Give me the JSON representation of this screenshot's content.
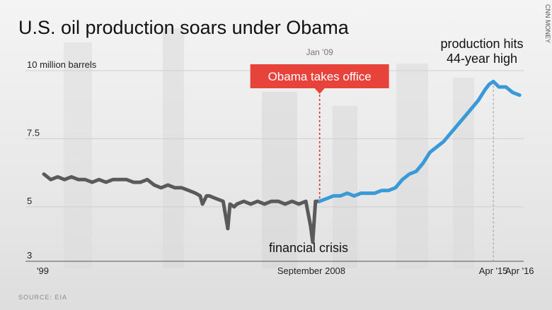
{
  "title": "U.S. oil production soars under Obama",
  "credit": "CNN MONEY",
  "source": "SOURCE: EIA",
  "colors": {
    "pre_obama": "#5a5a5a",
    "obama": "#3a9ad9",
    "callout": "#e8433b",
    "dashed_marker": "#d23a2e",
    "grid": "#cfcfcf"
  },
  "annotations": {
    "callout": "Obama takes office",
    "callout_date": "Jan '09",
    "crisis": "financial crisis",
    "peak_line1": "production hits",
    "peak_line2": "44-year high"
  },
  "chart_data": {
    "type": "line",
    "title": "U.S. oil production soars under Obama",
    "ylabel": "10 million barrels",
    "ylim": [
      3,
      10
    ],
    "yticks": [
      {
        "value": 10,
        "label": "10 million barrels"
      },
      {
        "value": 7.5,
        "label": "7.5"
      },
      {
        "value": 5,
        "label": "5"
      },
      {
        "value": 3,
        "label": "3"
      }
    ],
    "xlim": [
      1999.0,
      2016.4
    ],
    "xticks": [
      {
        "value": 1999.0,
        "label": "'99"
      },
      {
        "value": 2008.7,
        "label": "September 2008"
      },
      {
        "value": 2015.3,
        "label": "Apr '15"
      },
      {
        "value": 2016.25,
        "label": "Apr '16"
      }
    ],
    "grid": true,
    "series": [
      {
        "x": [
          1999.0,
          1999.25,
          1999.5,
          1999.75,
          2000.0,
          2000.25,
          2000.5,
          2000.75,
          2001.0,
          2001.25,
          2001.5,
          2001.75,
          2002.0,
          2002.25,
          2002.5,
          2002.75,
          2003.0,
          2003.25,
          2003.5,
          2003.75,
          2004.0,
          2004.25,
          2004.5,
          2004.67,
          2004.75,
          2004.9,
          2005.0,
          2005.25,
          2005.5,
          2005.67,
          2005.75,
          2005.9,
          2006.0,
          2006.25,
          2006.5,
          2006.75,
          2007.0,
          2007.25,
          2007.5,
          2007.75,
          2008.0,
          2008.25,
          2008.5,
          2008.67,
          2008.75,
          2008.85,
          2009.0
        ],
        "y": [
          6.2,
          6.0,
          6.1,
          6.0,
          6.1,
          6.0,
          6.0,
          5.9,
          6.0,
          5.9,
          6.0,
          6.0,
          6.0,
          5.9,
          5.9,
          6.0,
          5.8,
          5.7,
          5.8,
          5.7,
          5.7,
          5.6,
          5.5,
          5.4,
          5.1,
          5.4,
          5.4,
          5.3,
          5.2,
          4.2,
          5.1,
          5.0,
          5.1,
          5.2,
          5.1,
          5.2,
          5.1,
          5.2,
          5.2,
          5.1,
          5.2,
          5.1,
          5.2,
          4.3,
          3.7,
          5.2,
          5.2
        ]
      },
      {
        "x": [
          2009.0,
          2009.25,
          2009.5,
          2009.75,
          2010.0,
          2010.25,
          2010.5,
          2010.75,
          2011.0,
          2011.25,
          2011.5,
          2011.75,
          2012.0,
          2012.25,
          2012.5,
          2012.75,
          2013.0,
          2013.25,
          2013.5,
          2013.75,
          2014.0,
          2014.25,
          2014.5,
          2014.75,
          2015.0,
          2015.15,
          2015.3,
          2015.5,
          2015.75,
          2016.0,
          2016.25
        ],
        "y": [
          5.2,
          5.3,
          5.4,
          5.4,
          5.5,
          5.4,
          5.5,
          5.5,
          5.5,
          5.6,
          5.6,
          5.7,
          6.0,
          6.2,
          6.3,
          6.6,
          7.0,
          7.2,
          7.4,
          7.7,
          8.0,
          8.3,
          8.6,
          8.9,
          9.3,
          9.5,
          9.6,
          9.4,
          9.4,
          9.2,
          9.1
        ]
      }
    ]
  }
}
